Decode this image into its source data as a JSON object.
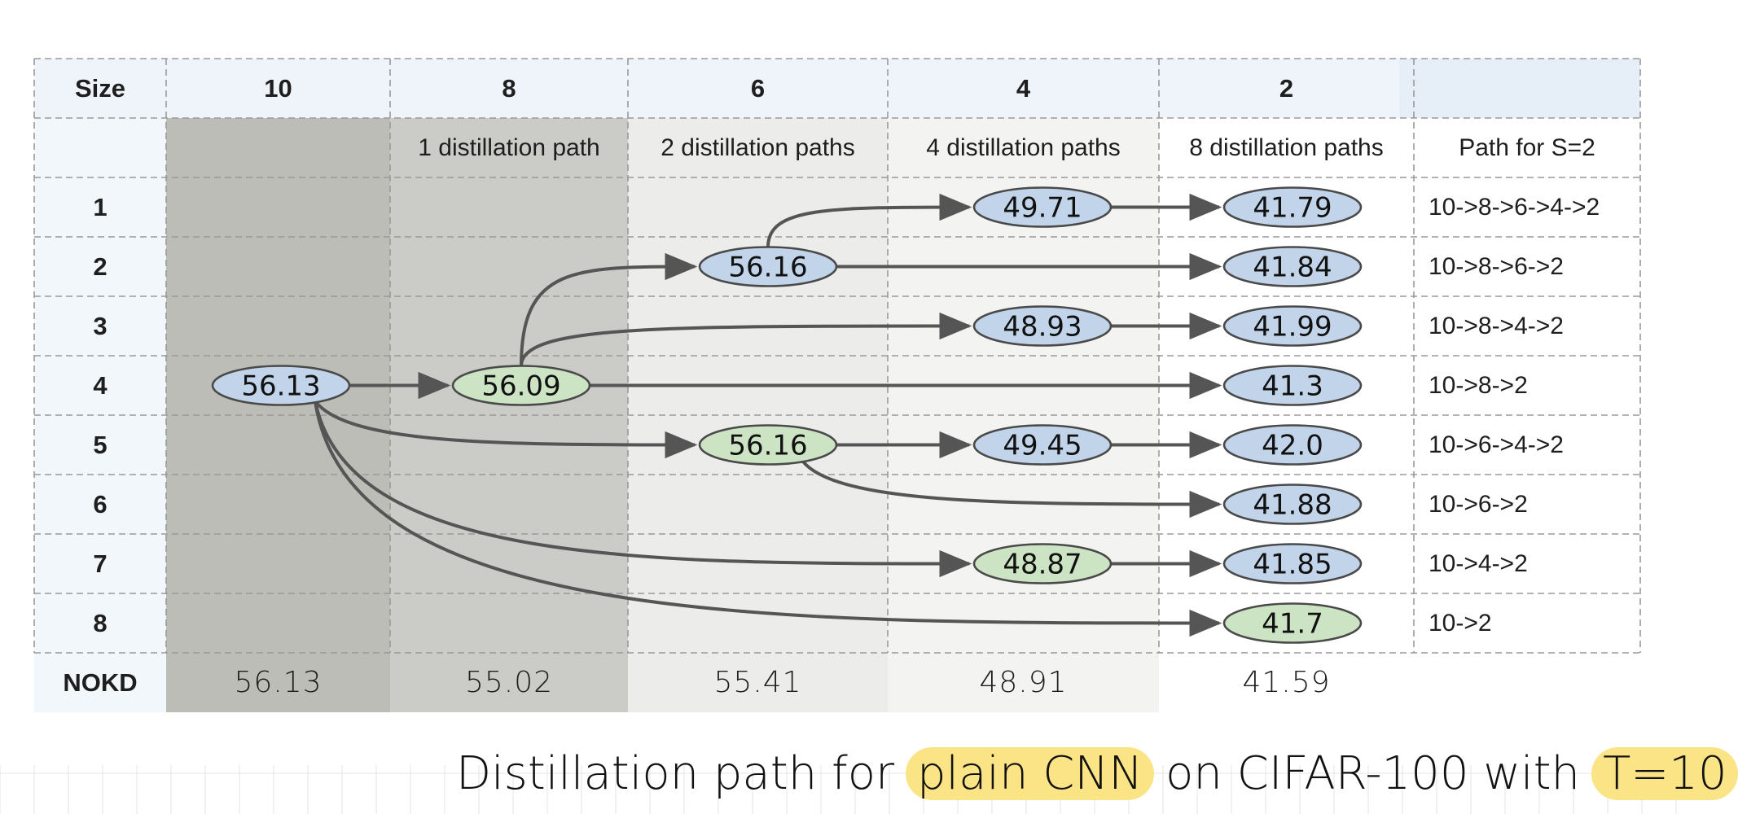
{
  "table": {
    "size_label": "Size",
    "columns": [
      "10",
      "8",
      "6",
      "4",
      "2"
    ],
    "subheaders": [
      "",
      "1 distillation path",
      "2 distillation paths",
      "4 distillation paths",
      "8 distillation paths"
    ],
    "path_header": "Path for S=2",
    "rows": [
      "1",
      "2",
      "3",
      "4",
      "5",
      "6",
      "7",
      "8"
    ],
    "paths": [
      "10->8->6->4->2",
      "10->8->6->2",
      "10->8->4->2",
      "10->8->2",
      "10->6->4->2",
      "10->6->2",
      "10->4->2",
      "10->2"
    ],
    "nokd_label": "NOKD",
    "nokd_values": [
      "56.13",
      "55.02",
      "55.41",
      "48.91",
      "41.59"
    ]
  },
  "nodes": [
    {
      "id": "n10",
      "col": 0,
      "row": 3,
      "label": "56.13",
      "color": "blue"
    },
    {
      "id": "n8",
      "col": 1,
      "row": 3,
      "label": "56.09",
      "color": "green"
    },
    {
      "id": "n6a",
      "col": 2,
      "row": 1,
      "label": "56.16",
      "color": "blue"
    },
    {
      "id": "n6b",
      "col": 2,
      "row": 4,
      "label": "56.16",
      "color": "green"
    },
    {
      "id": "n4a",
      "col": 3,
      "row": 0,
      "label": "49.71",
      "color": "blue"
    },
    {
      "id": "n4b",
      "col": 3,
      "row": 2,
      "label": "48.93",
      "color": "blue"
    },
    {
      "id": "n4c",
      "col": 3,
      "row": 4,
      "label": "49.45",
      "color": "blue"
    },
    {
      "id": "n4d",
      "col": 3,
      "row": 6,
      "label": "48.87",
      "color": "green"
    },
    {
      "id": "n2a",
      "col": 4,
      "row": 0,
      "label": "41.79",
      "color": "blue"
    },
    {
      "id": "n2b",
      "col": 4,
      "row": 1,
      "label": "41.84",
      "color": "blue"
    },
    {
      "id": "n2c",
      "col": 4,
      "row": 2,
      "label": "41.99",
      "color": "blue"
    },
    {
      "id": "n2d",
      "col": 4,
      "row": 3,
      "label": "41.3",
      "color": "blue"
    },
    {
      "id": "n2e",
      "col": 4,
      "row": 4,
      "label": "42.0",
      "color": "blue"
    },
    {
      "id": "n2f",
      "col": 4,
      "row": 5,
      "label": "41.88",
      "color": "blue"
    },
    {
      "id": "n2g",
      "col": 4,
      "row": 6,
      "label": "41.85",
      "color": "blue"
    },
    {
      "id": "n2h",
      "col": 4,
      "row": 7,
      "label": "41.7",
      "color": "green"
    }
  ],
  "edges": [
    [
      "n10",
      "n8"
    ],
    [
      "n10",
      "n6b"
    ],
    [
      "n10",
      "n4d"
    ],
    [
      "n10",
      "n2h"
    ],
    [
      "n8",
      "n6a"
    ],
    [
      "n8",
      "n4b"
    ],
    [
      "n8",
      "n2d"
    ],
    [
      "n6a",
      "n4a"
    ],
    [
      "n6a",
      "n2b"
    ],
    [
      "n6b",
      "n4c"
    ],
    [
      "n6b",
      "n2f"
    ],
    [
      "n4a",
      "n2a"
    ],
    [
      "n4b",
      "n2c"
    ],
    [
      "n4c",
      "n2e"
    ],
    [
      "n4d",
      "n2g"
    ]
  ],
  "caption": {
    "pre": "Distillation path for",
    "hl1": "plain CNN",
    "mid": "on CIFAR-100 with",
    "hl2": "T=10"
  },
  "colors": {
    "blue_node": "#c2d4ea",
    "green_node": "#cde4c4",
    "arrow": "#555555",
    "col10_bg": "#bdbdb8",
    "col8_bg": "#cbcbc7",
    "col6_bg": "#ececea",
    "col4_bg": "#f3f3f1",
    "header_bg": "#eef4fa",
    "highlight": "#fbe486"
  }
}
